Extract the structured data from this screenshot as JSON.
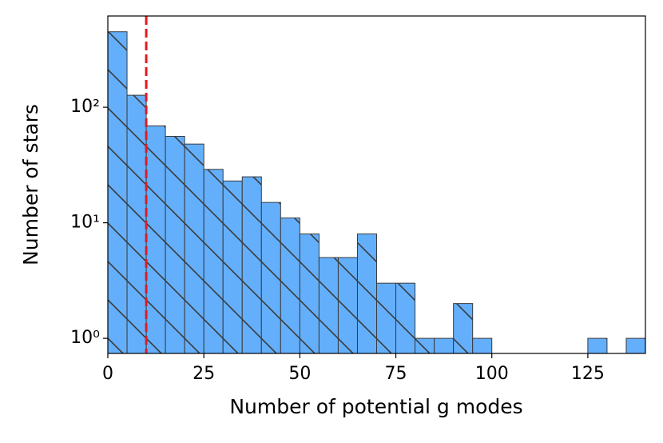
{
  "chart_data": {
    "type": "histogram",
    "xlabel": "Number of potential g modes",
    "ylabel": "Number of stars",
    "bins": [
      0,
      5,
      10,
      15,
      20,
      25,
      30,
      35,
      40,
      45,
      50,
      55,
      60,
      65,
      70,
      75,
      80,
      85,
      90,
      95,
      100,
      105,
      110,
      115,
      120,
      125,
      130,
      135,
      140
    ],
    "values": [
      450,
      127,
      69,
      56,
      48,
      29,
      23,
      25,
      15,
      11,
      8,
      5,
      5,
      8,
      3,
      3,
      1,
      1,
      2,
      1,
      0,
      0,
      0,
      0,
      0,
      1,
      0,
      1
    ],
    "color": "#64affc",
    "edgecolor": "#3a3a3a",
    "hatch": "\\",
    "xlim": [
      0,
      140
    ],
    "xticks": [
      0,
      25,
      50,
      75,
      100,
      125
    ],
    "ylim": [
      0.74,
      616
    ],
    "log_y": true,
    "yticks": [
      {
        "value": 1,
        "label": "10⁰"
      },
      {
        "value": 10,
        "label": "10¹"
      },
      {
        "value": 100,
        "label": "10²"
      }
    ],
    "reference_line": {
      "x": 10,
      "color": "#e41a1c",
      "style": "dashed"
    }
  }
}
